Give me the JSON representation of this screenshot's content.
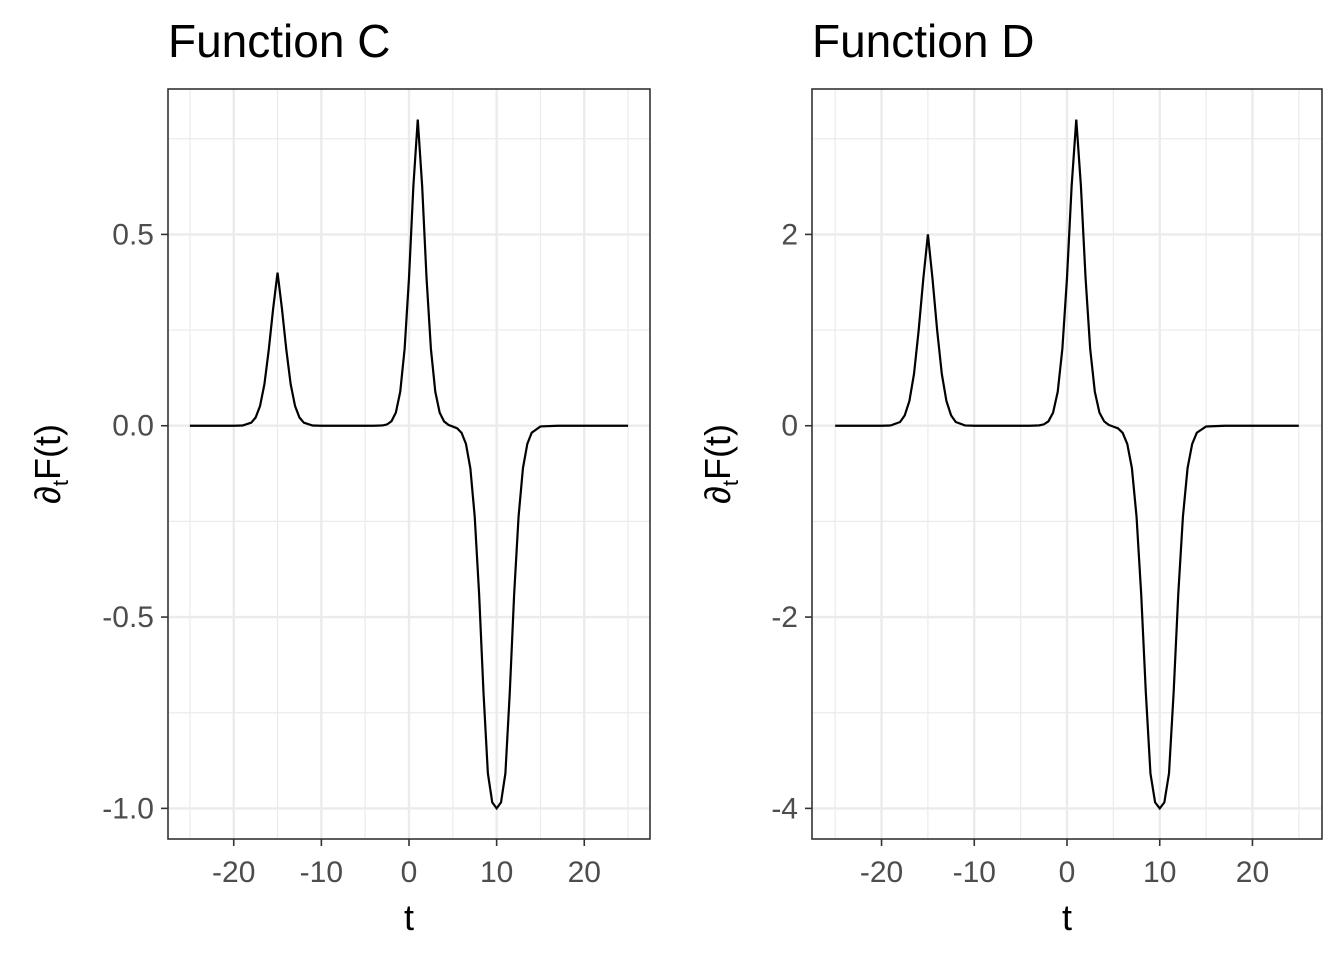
{
  "chart_data": [
    {
      "type": "line",
      "title": "Function C",
      "xlabel": "t",
      "ylabel": "∂tF(t)",
      "ylabel_parts": {
        "symbol": "∂",
        "subscript": "t",
        "func": "F(t)"
      },
      "xlim": [
        -27.5,
        27.5
      ],
      "ylim": [
        -1.08,
        0.88
      ],
      "xticks": [
        -20,
        -10,
        0,
        10,
        20
      ],
      "xtick_labels": [
        "-20",
        "-10",
        "0",
        "10",
        "20"
      ],
      "yticks": [
        -1.0,
        -0.5,
        0.0,
        0.5
      ],
      "ytick_labels": [
        "-1.0",
        "-0.5",
        "0.0",
        "0.5"
      ],
      "grid": true,
      "series": [
        {
          "x": [
            -25,
            -22,
            -20,
            -19,
            -18,
            -17.5,
            -17,
            -16.5,
            -16,
            -15.5,
            -15,
            -14.5,
            -14,
            -13.5,
            -13,
            -12.5,
            -12,
            -11,
            -10,
            -8,
            -6,
            -4,
            -3,
            -2.5,
            -2,
            -1.5,
            -1,
            -0.5,
            0,
            0.5,
            1,
            1.5,
            2,
            2.5,
            3,
            3.5,
            4,
            4.5,
            5,
            5.5,
            6,
            6.5,
            7,
            7.5,
            8,
            8.5,
            9,
            9.5,
            10,
            10.5,
            11,
            11.5,
            12,
            12.5,
            13,
            13.5,
            14,
            15,
            17,
            20,
            25
          ],
          "y": [
            0,
            0,
            0,
            0.0006,
            0.0079,
            0.0215,
            0.0514,
            0.1081,
            0.1989,
            0.3064,
            0.4,
            0.3064,
            0.1989,
            0.1081,
            0.0514,
            0.0215,
            0.0079,
            0.0006,
            0,
            0,
            0,
            0,
            0.0009,
            0.0035,
            0.0116,
            0.0342,
            0.0889,
            0.2009,
            0.3866,
            0.6267,
            0.8,
            0.6267,
            0.3866,
            0.2009,
            0.0889,
            0.0342,
            0.0114,
            0.0023,
            -0.0022,
            -0.0068,
            -0.0186,
            -0.0474,
            -0.1111,
            -0.2379,
            -0.4396,
            -0.6969,
            -0.9084,
            -0.9843,
            -1.0,
            -0.9843,
            -0.9084,
            -0.6969,
            -0.4396,
            -0.2379,
            -0.1111,
            -0.0474,
            -0.0183,
            -0.0019,
            0,
            0,
            0
          ]
        }
      ]
    },
    {
      "type": "line",
      "title": "Function D",
      "xlabel": "t",
      "ylabel": "∂tF(t)",
      "ylabel_parts": {
        "symbol": "∂",
        "subscript": "t",
        "func": "F(t)"
      },
      "xlim": [
        -27.5,
        27.5
      ],
      "ylim": [
        -4.32,
        3.52
      ],
      "xticks": [
        -20,
        -10,
        0,
        10,
        20
      ],
      "xtick_labels": [
        "-20",
        "-10",
        "0",
        "10",
        "20"
      ],
      "yticks": [
        -4,
        -2,
        0,
        2
      ],
      "ytick_labels": [
        "-4",
        "-2",
        "0",
        "2"
      ],
      "grid": true,
      "series": [
        {
          "x": [
            -25,
            -22,
            -20,
            -19,
            -18,
            -17.5,
            -17,
            -16.5,
            -16,
            -15.5,
            -15,
            -14.5,
            -14,
            -13.5,
            -13,
            -12.5,
            -12,
            -11,
            -10,
            -8,
            -6,
            -4,
            -3,
            -2.5,
            -2,
            -1.5,
            -1,
            -0.5,
            0,
            0.5,
            1,
            1.5,
            2,
            2.5,
            3,
            3.5,
            4,
            4.5,
            5,
            5.5,
            6,
            6.5,
            7,
            7.5,
            8,
            8.5,
            9,
            9.5,
            10,
            10.5,
            11,
            11.5,
            12,
            12.5,
            13,
            13.5,
            14,
            15,
            17,
            20,
            25
          ],
          "y": [
            0,
            0,
            0,
            0.003,
            0.039,
            0.108,
            0.257,
            0.541,
            0.995,
            1.532,
            2.0,
            1.532,
            0.995,
            0.541,
            0.257,
            0.108,
            0.039,
            0.003,
            0,
            0,
            0,
            0,
            0.004,
            0.014,
            0.046,
            0.137,
            0.356,
            0.804,
            1.546,
            2.507,
            3.2,
            2.507,
            1.546,
            0.804,
            0.356,
            0.137,
            0.046,
            0.009,
            -0.009,
            -0.027,
            -0.074,
            -0.19,
            -0.444,
            -0.952,
            -1.758,
            -2.788,
            -3.634,
            -3.937,
            -4.0,
            -3.937,
            -3.634,
            -2.788,
            -1.758,
            -0.952,
            -0.444,
            -0.19,
            -0.073,
            -0.008,
            0,
            0,
            0
          ]
        }
      ]
    }
  ]
}
